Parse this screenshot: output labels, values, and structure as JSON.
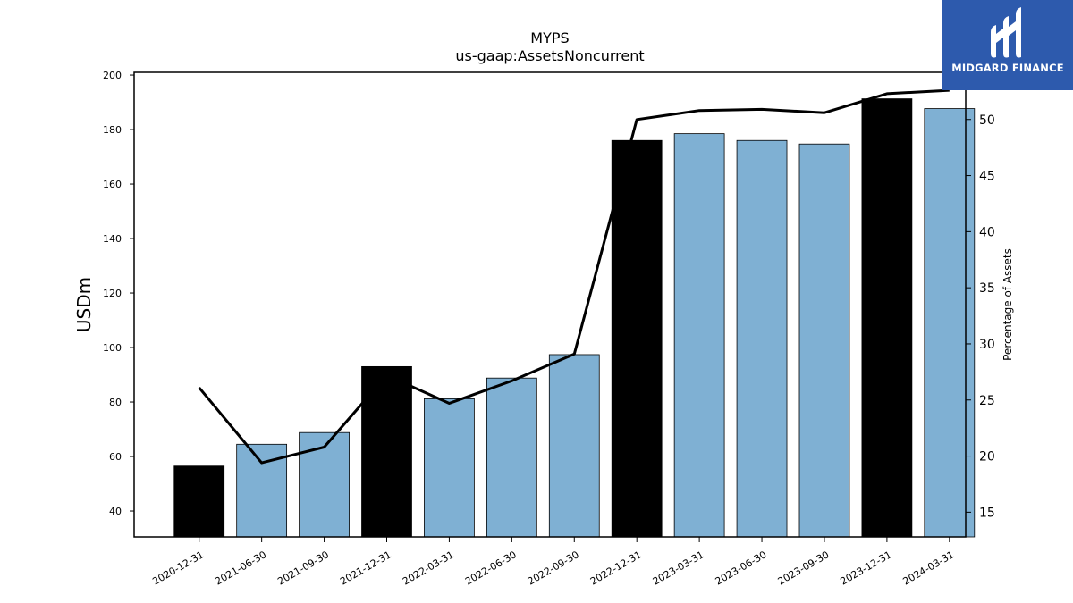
{
  "chart_data": {
    "type": "bar",
    "title": "MYPS",
    "subtitle": "us-gaap:AssetsNoncurrent",
    "ylabel": "USDm",
    "y2label": "Percentage of Assets",
    "categories": [
      "2020-12-31",
      "2021-06-30",
      "2021-09-30",
      "2021-12-31",
      "2022-03-31",
      "2022-06-30",
      "2022-09-30",
      "2022-12-31",
      "2023-03-31",
      "2023-06-30",
      "2023-09-30",
      "2023-12-31",
      "2024-03-31"
    ],
    "values": [
      56.5,
      64.5,
      68.8,
      93.0,
      81.2,
      88.8,
      97.4,
      176.0,
      178.5,
      176.0,
      174.7,
      191.3,
      187.7
    ],
    "bar_colors": [
      "#000000",
      "#7fb0d3",
      "#7fb0d3",
      "#000000",
      "#7fb0d3",
      "#7fb0d3",
      "#7fb0d3",
      "#000000",
      "#7fb0d3",
      "#7fb0d3",
      "#7fb0d3",
      "#000000",
      "#7fb0d3"
    ],
    "line_series": {
      "axis": "right",
      "values": [
        26.1,
        19.4,
        20.8,
        27.2,
        24.7,
        26.7,
        29.1,
        50.0,
        50.8,
        50.9,
        50.6,
        52.3,
        52.6
      ]
    },
    "ylim": [
      30.5,
      201
    ],
    "y2lim": [
      12.8,
      54.2
    ],
    "yticks": [
      40,
      60,
      80,
      100,
      120,
      140,
      160,
      180,
      200
    ],
    "y2ticks": [
      15,
      20,
      25,
      30,
      35,
      40,
      45,
      50
    ],
    "grid": false,
    "legend": "none"
  },
  "logo": {
    "text": "MIDGARD FINANCE",
    "background": "#2d5aad"
  }
}
